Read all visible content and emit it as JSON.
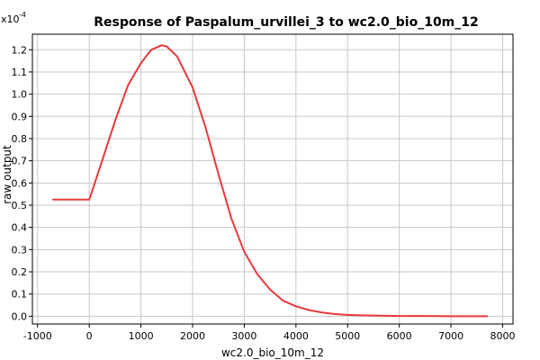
{
  "chart_data": {
    "type": "line",
    "title": "Response of Paspalum_urvillei_3 to wc2.0_bio_10m_12",
    "xlabel": "wc2.0_bio_10m_12",
    "ylabel": "raw output",
    "y_multiplier": "x10",
    "y_multiplier_exp": "-4",
    "xlim": [
      -1100,
      8200
    ],
    "ylim": [
      -0.035,
      1.27
    ],
    "x_ticks": [
      -1000,
      0,
      1000,
      2000,
      3000,
      4000,
      5000,
      6000,
      7000,
      8000
    ],
    "x_tick_labels": [
      "-1000",
      "0",
      "1000",
      "2000",
      "3000",
      "4000",
      "5000",
      "6000",
      "7000",
      "8000"
    ],
    "y_ticks": [
      0.0,
      0.1,
      0.2,
      0.3,
      0.4,
      0.5,
      0.6,
      0.7,
      0.8,
      0.9,
      1.0,
      1.1,
      1.2
    ],
    "y_tick_labels": [
      "0.0",
      "0.1",
      "0.2",
      "0.3",
      "0.4",
      "0.5",
      "0.6",
      "0.7",
      "0.8",
      "0.9",
      "1.0",
      "1.1",
      "1.2"
    ],
    "grid": true,
    "line_color": "#e8393b",
    "series": [
      {
        "x": [
          -700,
          0,
          250,
          500,
          750,
          1000,
          1200,
          1400,
          1500,
          1700,
          2000,
          2250,
          2500,
          2750,
          3000,
          3250,
          3500,
          3750,
          4000,
          4250,
          4500,
          4750,
          5000,
          5250,
          5500,
          5750,
          6000,
          6500,
          7000,
          7700
        ],
        "y": [
          0.525,
          0.525,
          0.7,
          0.88,
          1.04,
          1.14,
          1.2,
          1.22,
          1.215,
          1.17,
          1.03,
          0.85,
          0.64,
          0.44,
          0.29,
          0.19,
          0.12,
          0.07,
          0.045,
          0.028,
          0.017,
          0.01,
          0.006,
          0.004,
          0.003,
          0.002,
          0.001,
          0.001,
          0.0,
          0.0
        ]
      }
    ]
  }
}
